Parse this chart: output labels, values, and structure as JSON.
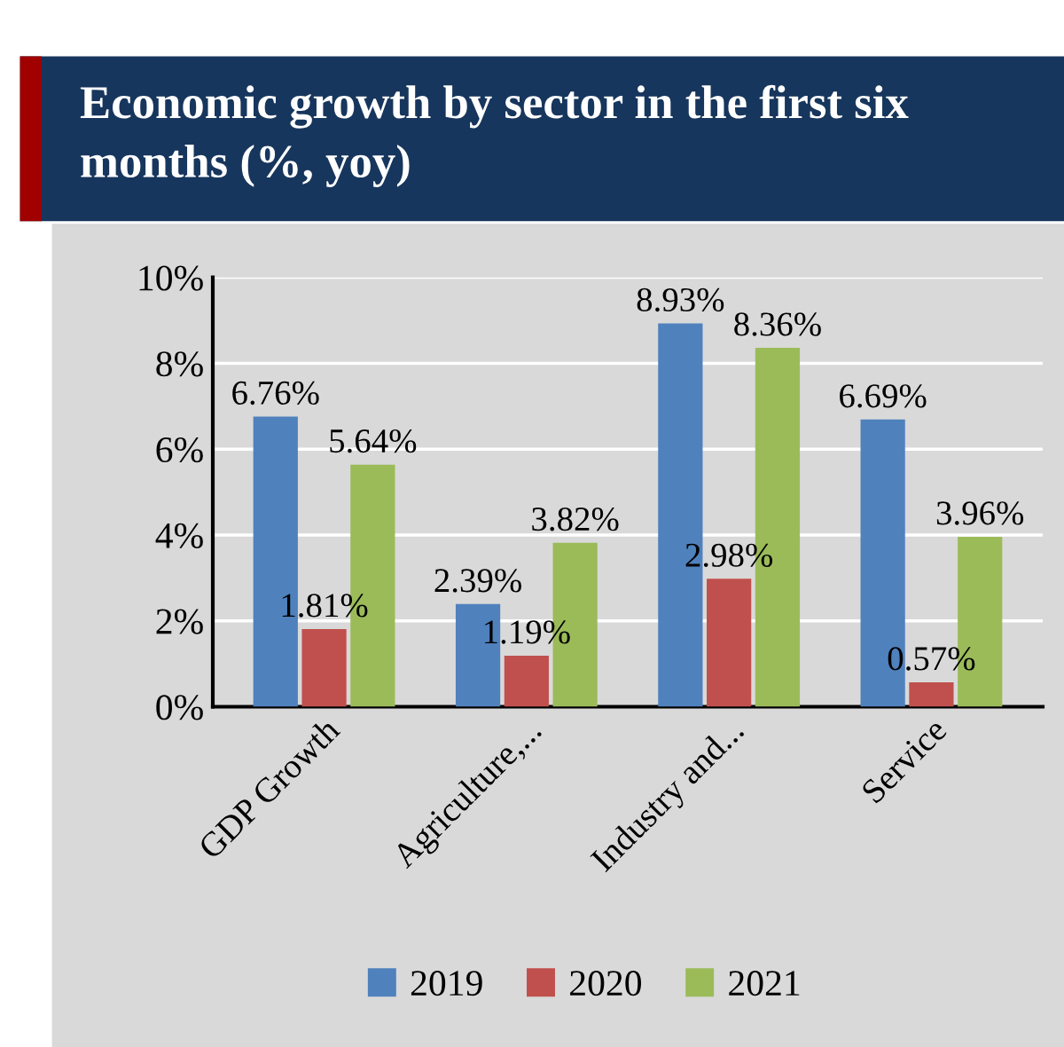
{
  "chart_data": {
    "type": "bar",
    "title": "Economic growth by sector in the first six months (%, yoy)",
    "categories": [
      "GDP Growth",
      "Agriculture,...",
      "Industry and...",
      "Service"
    ],
    "series": [
      {
        "name": "2019",
        "color": "#4f81bd",
        "values": [
          6.76,
          2.39,
          8.93,
          6.69
        ],
        "value_labels": [
          "6.76%",
          "2.39%",
          "8.93%",
          "6.69%"
        ]
      },
      {
        "name": "2020",
        "color": "#c0504d",
        "values": [
          1.81,
          1.19,
          2.98,
          0.57
        ],
        "value_labels": [
          "1.81%",
          "1.19%",
          "2.98%",
          "0.57%"
        ]
      },
      {
        "name": "2021",
        "color": "#9bbb59",
        "values": [
          5.64,
          3.82,
          8.36,
          3.96
        ],
        "value_labels": [
          "5.64%",
          "3.82%",
          "8.36%",
          "3.96%"
        ]
      }
    ],
    "ylim": [
      0,
      10
    ],
    "yticks": [
      {
        "value": 0,
        "label": "0%"
      },
      {
        "value": 2,
        "label": "2%"
      },
      {
        "value": 4,
        "label": "4%"
      },
      {
        "value": 6,
        "label": "6%"
      },
      {
        "value": 8,
        "label": "8%"
      },
      {
        "value": 10,
        "label": "10%"
      }
    ],
    "grid": "y",
    "legend": "bottom"
  }
}
